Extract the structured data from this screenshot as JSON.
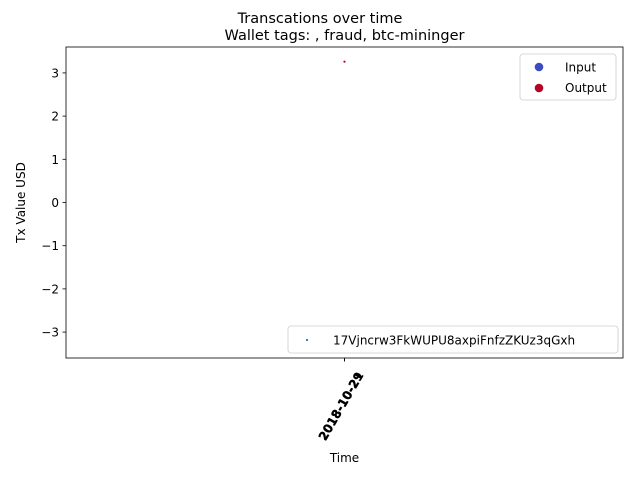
{
  "chart_data": {
    "type": "scatter",
    "suptitle": "Transcations over time",
    "title": "Wallet tags: , fraud, btc-mininger",
    "xlabel": "Time",
    "ylabel": "Tx Value USD",
    "ylim": [
      -3.6,
      3.6
    ],
    "xlim": [
      -0.055,
      0.055
    ],
    "yticks": [
      3,
      2,
      1,
      0,
      -1,
      -2,
      -3
    ],
    "ytick_labels": [
      "3",
      "2",
      "1",
      "0",
      "−1",
      "−2",
      "−3"
    ],
    "xticks": [
      {
        "x": 0,
        "label": "2018-10-29"
      },
      {
        "x": 0,
        "label": "2018-10-21"
      }
    ],
    "grid": false,
    "series": [
      {
        "name": "Input",
        "color": "#3b4cc0",
        "points": []
      },
      {
        "name": "Output",
        "color": "#b40426",
        "points": [
          {
            "x": 0,
            "y": 3.26
          }
        ]
      },
      {
        "name": "17Vjncrw3FkWUPU8axpiFnfzZKUz3qGxh",
        "color": "#1f77b4",
        "points": []
      }
    ],
    "legends": [
      {
        "placement": "upper-right",
        "entries": [
          {
            "label": "Input",
            "color": "#3b4cc0"
          },
          {
            "label": "Output",
            "color": "#b40426"
          }
        ]
      },
      {
        "placement": "lower-right",
        "entries": [
          {
            "label": "17Vjncrw3FkWUPU8axpiFnfzZKUz3qGxh",
            "color": "#1f77b4"
          }
        ]
      }
    ]
  }
}
